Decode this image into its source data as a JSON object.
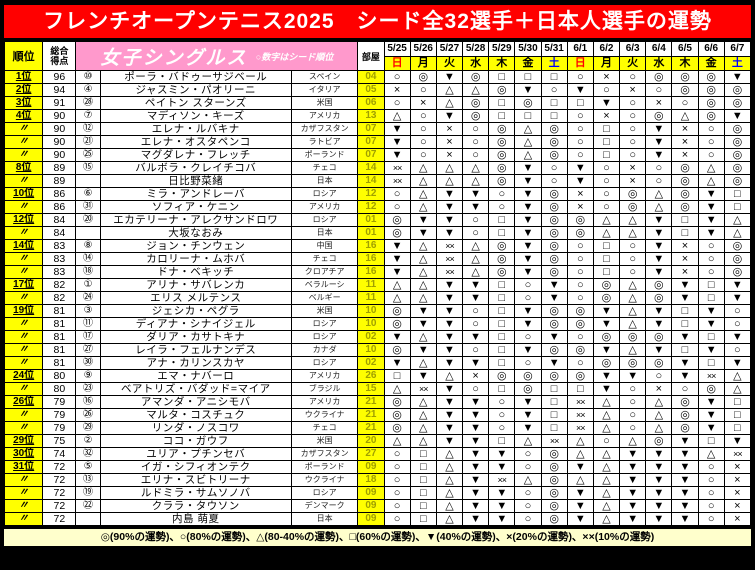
{
  "title": "フレンチオープンテニス2025　シード全32選手＋日本人選手の運勢",
  "colors": {
    "title_bg": "#ff0000",
    "header_yellow": "#ffff00",
    "singles_banner_pink": "#ff99cc",
    "footer_bg": "#ffffcc",
    "room_text": "#a0a000",
    "sunday": "#ff0000",
    "saturday": "#0000ff",
    "weekday": "#000000"
  },
  "header": {
    "rank": "順位",
    "score_top": "総合",
    "score_bottom": "得点",
    "singles_title": "女子シングルス",
    "singles_note": "○数字はシード順位",
    "room": "部屋",
    "dates": [
      {
        "date": "5/25",
        "day": "日",
        "color": "#ff0000"
      },
      {
        "date": "5/26",
        "day": "月",
        "color": "#000000"
      },
      {
        "date": "5/27",
        "day": "火",
        "color": "#000000"
      },
      {
        "date": "5/28",
        "day": "水",
        "color": "#000000"
      },
      {
        "date": "5/29",
        "day": "木",
        "color": "#000000"
      },
      {
        "date": "5/30",
        "day": "金",
        "color": "#000000"
      },
      {
        "date": "5/31",
        "day": "土",
        "color": "#0000ff"
      },
      {
        "date": "6/1",
        "day": "日",
        "color": "#ff0000"
      },
      {
        "date": "6/2",
        "day": "月",
        "color": "#000000"
      },
      {
        "date": "6/3",
        "day": "火",
        "color": "#000000"
      },
      {
        "date": "6/4",
        "day": "水",
        "color": "#000000"
      },
      {
        "date": "6/5",
        "day": "木",
        "color": "#000000"
      },
      {
        "date": "6/6",
        "day": "金",
        "color": "#000000"
      },
      {
        "date": "6/7",
        "day": "土",
        "color": "#0000ff"
      }
    ]
  },
  "legend": "◎(90%の運勢)、○(80%の運勢)、△(80-40%の運勢)、□(60%の運勢)、▼(40%の運勢)、×(20%の運勢)、××(10%の運勢)",
  "rows": [
    {
      "rank": "1位",
      "score": "96",
      "seed": "⑩",
      "name": "ポーラ・バドゥーサジベール",
      "country": "スペイン",
      "room": "04",
      "fortunes": [
        "○",
        "◎",
        "▼",
        "◎",
        "□",
        "□",
        "□",
        "○",
        "×",
        "○",
        "◎",
        "◎",
        "◎",
        "▼"
      ]
    },
    {
      "rank": "2位",
      "score": "94",
      "seed": "④",
      "name": "ジャスミン・パオリーニ",
      "country": "イタリア",
      "room": "05",
      "fortunes": [
        "×",
        "○",
        "△",
        "△",
        "◎",
        "▼",
        "○",
        "▼",
        "○",
        "×",
        "○",
        "◎",
        "◎",
        "◎"
      ]
    },
    {
      "rank": "3位",
      "score": "91",
      "seed": "㉘",
      "name": "ペイトン スターンズ",
      "country": "米国",
      "room": "06",
      "fortunes": [
        "○",
        "×",
        "△",
        "◎",
        "□",
        "◎",
        "□",
        "□",
        "▼",
        "○",
        "×",
        "○",
        "◎",
        "◎"
      ]
    },
    {
      "rank": "4位",
      "score": "90",
      "seed": "⑦",
      "name": "マディソン・キーズ",
      "country": "アメリカ",
      "room": "13",
      "fortunes": [
        "△",
        "○",
        "▼",
        "◎",
        "□",
        "□",
        "□",
        "○",
        "×",
        "○",
        "◎",
        "△",
        "◎",
        "▼"
      ]
    },
    {
      "rank": "〃",
      "score": "90",
      "seed": "⑫",
      "name": "エレナ・ルバキナ",
      "country": "カザフスタン",
      "room": "07",
      "fortunes": [
        "▼",
        "○",
        "×",
        "○",
        "◎",
        "△",
        "◎",
        "○",
        "□",
        "○",
        "▼",
        "×",
        "○",
        "◎"
      ]
    },
    {
      "rank": "〃",
      "score": "90",
      "seed": "㉑",
      "name": "エレナ・オスタペンコ",
      "country": "ラトビア",
      "room": "07",
      "fortunes": [
        "▼",
        "○",
        "×",
        "○",
        "◎",
        "△",
        "◎",
        "○",
        "□",
        "○",
        "▼",
        "×",
        "○",
        "◎"
      ]
    },
    {
      "rank": "〃",
      "score": "90",
      "seed": "㉕",
      "name": "マグダレナ・フレッチ",
      "country": "ポーランド",
      "room": "07",
      "fortunes": [
        "▼",
        "○",
        "×",
        "○",
        "◎",
        "△",
        "◎",
        "○",
        "□",
        "○",
        "▼",
        "×",
        "○",
        "◎"
      ]
    },
    {
      "rank": "8位",
      "score": "89",
      "seed": "⑮",
      "name": "バルボラ・クレイチコバ",
      "country": "チェコ",
      "room": "14",
      "fortunes": [
        "××",
        "△",
        "△",
        "△",
        "◎",
        "▼",
        "○",
        "▼",
        "○",
        "×",
        "○",
        "◎",
        "△",
        "◎"
      ]
    },
    {
      "rank": "〃",
      "score": "89",
      "seed": "",
      "name": "日比野菜緒",
      "country": "日本",
      "room": "14",
      "fortunes": [
        "××",
        "△",
        "△",
        "△",
        "◎",
        "▼",
        "○",
        "▼",
        "○",
        "×",
        "○",
        "◎",
        "△",
        "◎"
      ]
    },
    {
      "rank": "10位",
      "score": "86",
      "seed": "⑥",
      "name": "ミラ・アンドレーバ",
      "country": "ロシア",
      "room": "12",
      "fortunes": [
        "○",
        "△",
        "▼",
        "▼",
        "○",
        "▼",
        "◎",
        "×",
        "○",
        "◎",
        "△",
        "◎",
        "▼",
        "□"
      ]
    },
    {
      "rank": "〃",
      "score": "86",
      "seed": "㉛",
      "name": "ソフィア・ケニン",
      "country": "アメリカ",
      "room": "12",
      "fortunes": [
        "○",
        "△",
        "▼",
        "▼",
        "○",
        "▼",
        "◎",
        "×",
        "○",
        "◎",
        "△",
        "◎",
        "▼",
        "□"
      ]
    },
    {
      "rank": "12位",
      "score": "84",
      "seed": "⑳",
      "name": "エカテリーナ・アレクサンドロワ",
      "country": "ロシア",
      "room": "01",
      "fortunes": [
        "◎",
        "▼",
        "▼",
        "○",
        "□",
        "▼",
        "◎",
        "◎",
        "△",
        "△",
        "▼",
        "□",
        "▼",
        "△"
      ]
    },
    {
      "rank": "〃",
      "score": "84",
      "seed": "",
      "name": "大坂なおみ",
      "country": "日本",
      "room": "01",
      "fortunes": [
        "◎",
        "▼",
        "▼",
        "○",
        "□",
        "▼",
        "◎",
        "◎",
        "△",
        "△",
        "▼",
        "□",
        "▼",
        "△"
      ]
    },
    {
      "rank": "14位",
      "score": "83",
      "seed": "⑧",
      "name": "ジョン・チンウェン",
      "country": "中国",
      "room": "16",
      "fortunes": [
        "▼",
        "△",
        "××",
        "△",
        "◎",
        "▼",
        "◎",
        "○",
        "□",
        "○",
        "▼",
        "×",
        "○",
        "◎"
      ]
    },
    {
      "rank": "〃",
      "score": "83",
      "seed": "⑭",
      "name": "カロリーナ・ムホバ",
      "country": "チェコ",
      "room": "16",
      "fortunes": [
        "▼",
        "△",
        "××",
        "△",
        "◎",
        "▼",
        "◎",
        "○",
        "□",
        "○",
        "▼",
        "×",
        "○",
        "◎"
      ]
    },
    {
      "rank": "〃",
      "score": "83",
      "seed": "⑱",
      "name": "ドナ・ベキッチ",
      "country": "クロアチア",
      "room": "16",
      "fortunes": [
        "▼",
        "△",
        "××",
        "△",
        "◎",
        "▼",
        "◎",
        "○",
        "□",
        "○",
        "▼",
        "×",
        "○",
        "◎"
      ]
    },
    {
      "rank": "17位",
      "score": "82",
      "seed": "①",
      "name": "アリナ・サバレンカ",
      "country": "ベラルーシ",
      "room": "11",
      "fortunes": [
        "△",
        "△",
        "▼",
        "▼",
        "□",
        "○",
        "▼",
        "○",
        "◎",
        "△",
        "◎",
        "▼",
        "□",
        "▼"
      ]
    },
    {
      "rank": "〃",
      "score": "82",
      "seed": "㉔",
      "name": "エリス メルテンス",
      "country": "ベルギー",
      "room": "11",
      "fortunes": [
        "△",
        "△",
        "▼",
        "▼",
        "□",
        "○",
        "▼",
        "○",
        "◎",
        "△",
        "◎",
        "▼",
        "□",
        "▼"
      ]
    },
    {
      "rank": "19位",
      "score": "81",
      "seed": "③",
      "name": "ジェシカ・ペグラ",
      "country": "米国",
      "room": "10",
      "fortunes": [
        "◎",
        "▼",
        "▼",
        "○",
        "□",
        "▼",
        "◎",
        "◎",
        "▼",
        "△",
        "▼",
        "□",
        "▼",
        "○"
      ]
    },
    {
      "rank": "〃",
      "score": "81",
      "seed": "⑪",
      "name": "ディアナ・シナイジェル",
      "country": "ロシア",
      "room": "10",
      "fortunes": [
        "◎",
        "▼",
        "▼",
        "○",
        "□",
        "▼",
        "◎",
        "◎",
        "▼",
        "△",
        "▼",
        "□",
        "▼",
        "○"
      ]
    },
    {
      "rank": "〃",
      "score": "81",
      "seed": "⑰",
      "name": "ダリア・カサトキナ",
      "country": "ロシア",
      "room": "02",
      "fortunes": [
        "▼",
        "△",
        "▼",
        "▼",
        "□",
        "○",
        "▼",
        "○",
        "◎",
        "◎",
        "◎",
        "▼",
        "□",
        "▼"
      ]
    },
    {
      "rank": "〃",
      "score": "81",
      "seed": "㉗",
      "name": "レイラ・フェルナンデス",
      "country": "カナダ",
      "room": "10",
      "fortunes": [
        "◎",
        "▼",
        "▼",
        "○",
        "□",
        "▼",
        "◎",
        "◎",
        "▼",
        "△",
        "▼",
        "□",
        "▼",
        "○"
      ]
    },
    {
      "rank": "〃",
      "score": "81",
      "seed": "㉚",
      "name": "アナ・カリンスカヤ",
      "country": "ロシア",
      "room": "02",
      "fortunes": [
        "▼",
        "△",
        "▼",
        "▼",
        "□",
        "○",
        "▼",
        "○",
        "◎",
        "◎",
        "◎",
        "▼",
        "□",
        "▼"
      ]
    },
    {
      "rank": "24位",
      "score": "80",
      "seed": "⑨",
      "name": "エマ・ナバーロ",
      "country": "アメリカ",
      "room": "26",
      "fortunes": [
        "□",
        "▼",
        "△",
        "×",
        "◎",
        "◎",
        "◎",
        "◎",
        "▼",
        "▼",
        "○",
        "▼",
        "××",
        "△"
      ]
    },
    {
      "rank": "〃",
      "score": "80",
      "seed": "㉓",
      "name": "ベアトリズ・バダッド=マイア",
      "country": "ブラジル",
      "room": "15",
      "fortunes": [
        "△",
        "××",
        "▼",
        "○",
        "□",
        "◎",
        "□",
        "□",
        "▼",
        "○",
        "×",
        "○",
        "◎",
        "△"
      ]
    },
    {
      "rank": "26位",
      "score": "79",
      "seed": "⑯",
      "name": "アマンダ・アニシモバ",
      "country": "アメリカ",
      "room": "21",
      "fortunes": [
        "◎",
        "△",
        "▼",
        "▼",
        "○",
        "▼",
        "□",
        "××",
        "△",
        "○",
        "△",
        "◎",
        "▼",
        "□"
      ]
    },
    {
      "rank": "〃",
      "score": "79",
      "seed": "㉖",
      "name": "マルタ・コスチュク",
      "country": "ウクライナ",
      "room": "21",
      "fortunes": [
        "◎",
        "△",
        "▼",
        "▼",
        "○",
        "▼",
        "□",
        "××",
        "△",
        "○",
        "△",
        "◎",
        "▼",
        "□"
      ]
    },
    {
      "rank": "〃",
      "score": "79",
      "seed": "㉙",
      "name": "リンダ・ノスコワ",
      "country": "チェコ",
      "room": "21",
      "fortunes": [
        "◎",
        "△",
        "▼",
        "▼",
        "○",
        "▼",
        "□",
        "××",
        "△",
        "○",
        "△",
        "◎",
        "▼",
        "□"
      ]
    },
    {
      "rank": "29位",
      "score": "75",
      "seed": "②",
      "name": "ココ・ガウフ",
      "country": "米国",
      "room": "20",
      "fortunes": [
        "△",
        "△",
        "▼",
        "▼",
        "□",
        "△",
        "××",
        "△",
        "○",
        "△",
        "◎",
        "▼",
        "□",
        "▼"
      ]
    },
    {
      "rank": "30位",
      "score": "74",
      "seed": "㉜",
      "name": "ユリア・プチンセバ",
      "country": "カザフスタン",
      "room": "27",
      "fortunes": [
        "○",
        "□",
        "△",
        "▼",
        "▼",
        "○",
        "◎",
        "△",
        "△",
        "▼",
        "▼",
        "▼",
        "△",
        "××"
      ]
    },
    {
      "rank": "31位",
      "score": "72",
      "seed": "⑤",
      "name": "イガ・シフィオンテク",
      "country": "ポーランド",
      "room": "09",
      "fortunes": [
        "○",
        "□",
        "△",
        "▼",
        "▼",
        "○",
        "◎",
        "▼",
        "△",
        "▼",
        "▼",
        "▼",
        "○",
        "×"
      ]
    },
    {
      "rank": "〃",
      "score": "72",
      "seed": "⑬",
      "name": "エリナ・スビトリーナ",
      "country": "ウクライナ",
      "room": "18",
      "fortunes": [
        "○",
        "□",
        "△",
        "▼",
        "××",
        "△",
        "◎",
        "△",
        "△",
        "▼",
        "▼",
        "▼",
        "○",
        "×"
      ]
    },
    {
      "rank": "〃",
      "score": "72",
      "seed": "⑲",
      "name": "ルドミラ・サムソノバ",
      "country": "ロシア",
      "room": "09",
      "fortunes": [
        "○",
        "□",
        "△",
        "▼",
        "▼",
        "○",
        "◎",
        "▼",
        "△",
        "▼",
        "▼",
        "▼",
        "○",
        "×"
      ]
    },
    {
      "rank": "〃",
      "score": "72",
      "seed": "㉒",
      "name": "クララ・タウソン",
      "country": "デンマーク",
      "room": "09",
      "fortunes": [
        "○",
        "□",
        "△",
        "▼",
        "▼",
        "○",
        "◎",
        "▼",
        "△",
        "▼",
        "▼",
        "▼",
        "○",
        "×"
      ]
    },
    {
      "rank": "〃",
      "score": "72",
      "seed": "",
      "name": "内島 萌夏",
      "country": "日本",
      "room": "09",
      "fortunes": [
        "○",
        "□",
        "△",
        "▼",
        "▼",
        "○",
        "◎",
        "▼",
        "△",
        "▼",
        "▼",
        "▼",
        "○",
        "×"
      ]
    }
  ]
}
